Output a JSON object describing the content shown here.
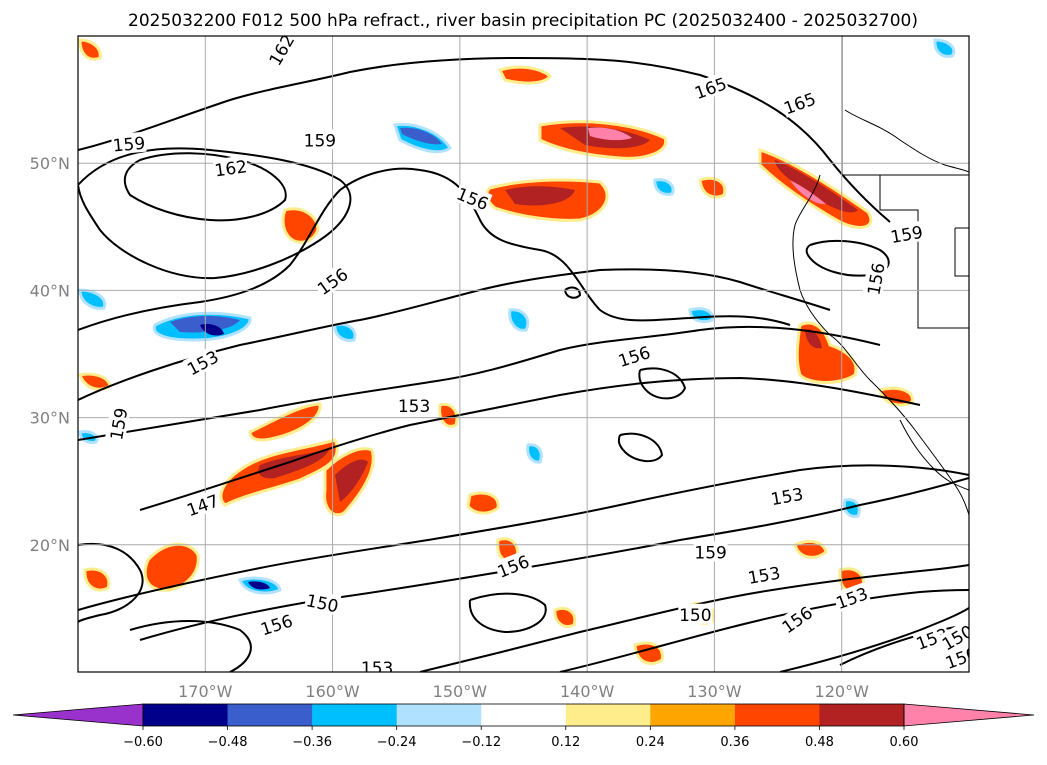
{
  "title": "2025032200 F012 500 hPa refract., river basin precipitation PC (2025032400 - 2025032700)",
  "map": {
    "lon_ticks": [
      {
        "label": "170°W",
        "lon": -170
      },
      {
        "label": "160°W",
        "lon": -160
      },
      {
        "label": "150°W",
        "lon": -150
      },
      {
        "label": "140°W",
        "lon": -140
      },
      {
        "label": "130°W",
        "lon": -130
      },
      {
        "label": "120°W",
        "lon": -120
      }
    ],
    "lat_ticks": [
      {
        "label": "50°N",
        "lat": 50
      },
      {
        "label": "40°N",
        "lat": 40
      },
      {
        "label": "30°N",
        "lat": 30
      },
      {
        "label": "20°N",
        "lat": 20
      }
    ],
    "extent": {
      "lon_min": -180,
      "lon_max": -110,
      "lat_min": 10,
      "lat_max": 60
    },
    "grid": true,
    "contour_labels": [
      {
        "text": "159",
        "lon": -176,
        "lat": 51.5,
        "rot": -5
      },
      {
        "text": "162",
        "lon": -168,
        "lat": 49.6,
        "rot": -8
      },
      {
        "text": "159",
        "lon": -161,
        "lat": 51.8,
        "rot": 0
      },
      {
        "text": "162",
        "lon": -164,
        "lat": 58.9,
        "rot": -60
      },
      {
        "text": "156",
        "lon": -149,
        "lat": 47.2,
        "rot": 22
      },
      {
        "text": "156",
        "lon": -160,
        "lat": 40.7,
        "rot": -35
      },
      {
        "text": "153",
        "lon": -170.2,
        "lat": 34.3,
        "rot": -28
      },
      {
        "text": "159",
        "lon": -176.8,
        "lat": 29.5,
        "rot": -80
      },
      {
        "text": "153",
        "lon": -153.6,
        "lat": 30.9,
        "rot": 0
      },
      {
        "text": "156",
        "lon": -136.3,
        "lat": 34.8,
        "rot": -18
      },
      {
        "text": "147",
        "lon": -170.2,
        "lat": 23.1,
        "rot": -20
      },
      {
        "text": "150",
        "lon": -160.8,
        "lat": 15.4,
        "rot": 12
      },
      {
        "text": "156",
        "lon": -164.4,
        "lat": 13.7,
        "rot": -18
      },
      {
        "text": "153",
        "lon": -156.5,
        "lat": 10.3,
        "rot": 0
      },
      {
        "text": "156",
        "lon": -145.8,
        "lat": 18.3,
        "rot": -22
      },
      {
        "text": "159",
        "lon": -130.3,
        "lat": 19.4,
        "rot": 0
      },
      {
        "text": "153",
        "lon": -126.1,
        "lat": 17.6,
        "rot": -10
      },
      {
        "text": "153",
        "lon": -124.3,
        "lat": 23.8,
        "rot": -10
      },
      {
        "text": "150",
        "lon": -131.5,
        "lat": 14.5,
        "rot": 0
      },
      {
        "text": "156",
        "lon": -123.5,
        "lat": 14.1,
        "rot": -35
      },
      {
        "text": "153",
        "lon": -119.2,
        "lat": 15.8,
        "rot": -20
      },
      {
        "text": "153",
        "lon": -112.9,
        "lat": 12.6,
        "rot": -20
      },
      {
        "text": "150",
        "lon": -110.9,
        "lat": 12.7,
        "rot": -30
      },
      {
        "text": "150",
        "lon": -110.6,
        "lat": 11.1,
        "rot": -20
      },
      {
        "text": "165",
        "lon": -130.3,
        "lat": 55.9,
        "rot": -20
      },
      {
        "text": "165",
        "lon": -123.3,
        "lat": 54.7,
        "rot": -20
      },
      {
        "text": "159",
        "lon": -114.9,
        "lat": 44.4,
        "rot": -10
      },
      {
        "text": "156",
        "lon": -117.3,
        "lat": 40.9,
        "rot": -80
      }
    ],
    "colors": {
      "contour": "#000000",
      "grid": "#aaaaaa",
      "coast": "#000000"
    }
  },
  "colorbar": {
    "tick_labels": [
      "−0.60",
      "−0.48",
      "−0.36",
      "−0.24",
      "−0.12",
      "0.12",
      "0.24",
      "0.36",
      "0.48",
      "0.60"
    ],
    "levels": [
      -0.6,
      -0.48,
      -0.36,
      -0.24,
      -0.12,
      0.12,
      0.24,
      0.36,
      0.48,
      0.6
    ],
    "colors": [
      "#9932cc",
      "#00008b",
      "#3a5fcd",
      "#00bfff",
      "#b0e2ff",
      "#ffffff",
      "#ffec8b",
      "#ffa500",
      "#ff4500",
      "#b22222",
      "#ff82ab"
    ]
  }
}
